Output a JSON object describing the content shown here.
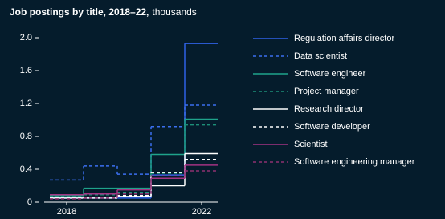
{
  "chart_data": {
    "type": "step",
    "title": "Job postings by title, 2018–22,",
    "subtitle": "thousands",
    "categories": [
      "2018",
      null,
      null,
      null,
      "2022"
    ],
    "ylim": [
      0,
      2.0
    ],
    "yticks": [
      0,
      0.4,
      0.8,
      1.2,
      1.6,
      {
        "value": 2,
        "label": "2.0"
      }
    ],
    "series": [
      {
        "name": "Regulation affairs director",
        "color": "#2f62e6",
        "dash": false,
        "values": [
          0.05,
          0.05,
          0.05,
          0.33,
          1.93
        ]
      },
      {
        "name": "Data scientist",
        "color": "#3b6ff0",
        "dash": true,
        "values": [
          0.27,
          0.44,
          0.34,
          0.92,
          1.18
        ]
      },
      {
        "name": "Software engineer",
        "color": "#1fa38b",
        "dash": false,
        "values": [
          0.08,
          0.17,
          0.17,
          0.58,
          1.01
        ]
      },
      {
        "name": "Project manager",
        "color": "#1c8f78",
        "dash": true,
        "values": [
          0.07,
          0.09,
          0.12,
          0.35,
          0.94
        ]
      },
      {
        "name": "Research director",
        "color": "#ffffff",
        "dash": false,
        "values": [
          0.05,
          0.05,
          0.07,
          0.2,
          0.59
        ]
      },
      {
        "name": "Software developer",
        "color": "#ffffff",
        "dash": true,
        "values": [
          0.05,
          0.06,
          0.08,
          0.36,
          0.52
        ]
      },
      {
        "name": "Scientist",
        "color": "#a33383",
        "dash": false,
        "values": [
          0.09,
          0.1,
          0.15,
          0.29,
          0.45
        ]
      },
      {
        "name": "Software engineering manager",
        "color": "#8e3070",
        "dash": true,
        "values": [
          0.04,
          0.05,
          0.1,
          0.32,
          0.38
        ]
      }
    ]
  }
}
